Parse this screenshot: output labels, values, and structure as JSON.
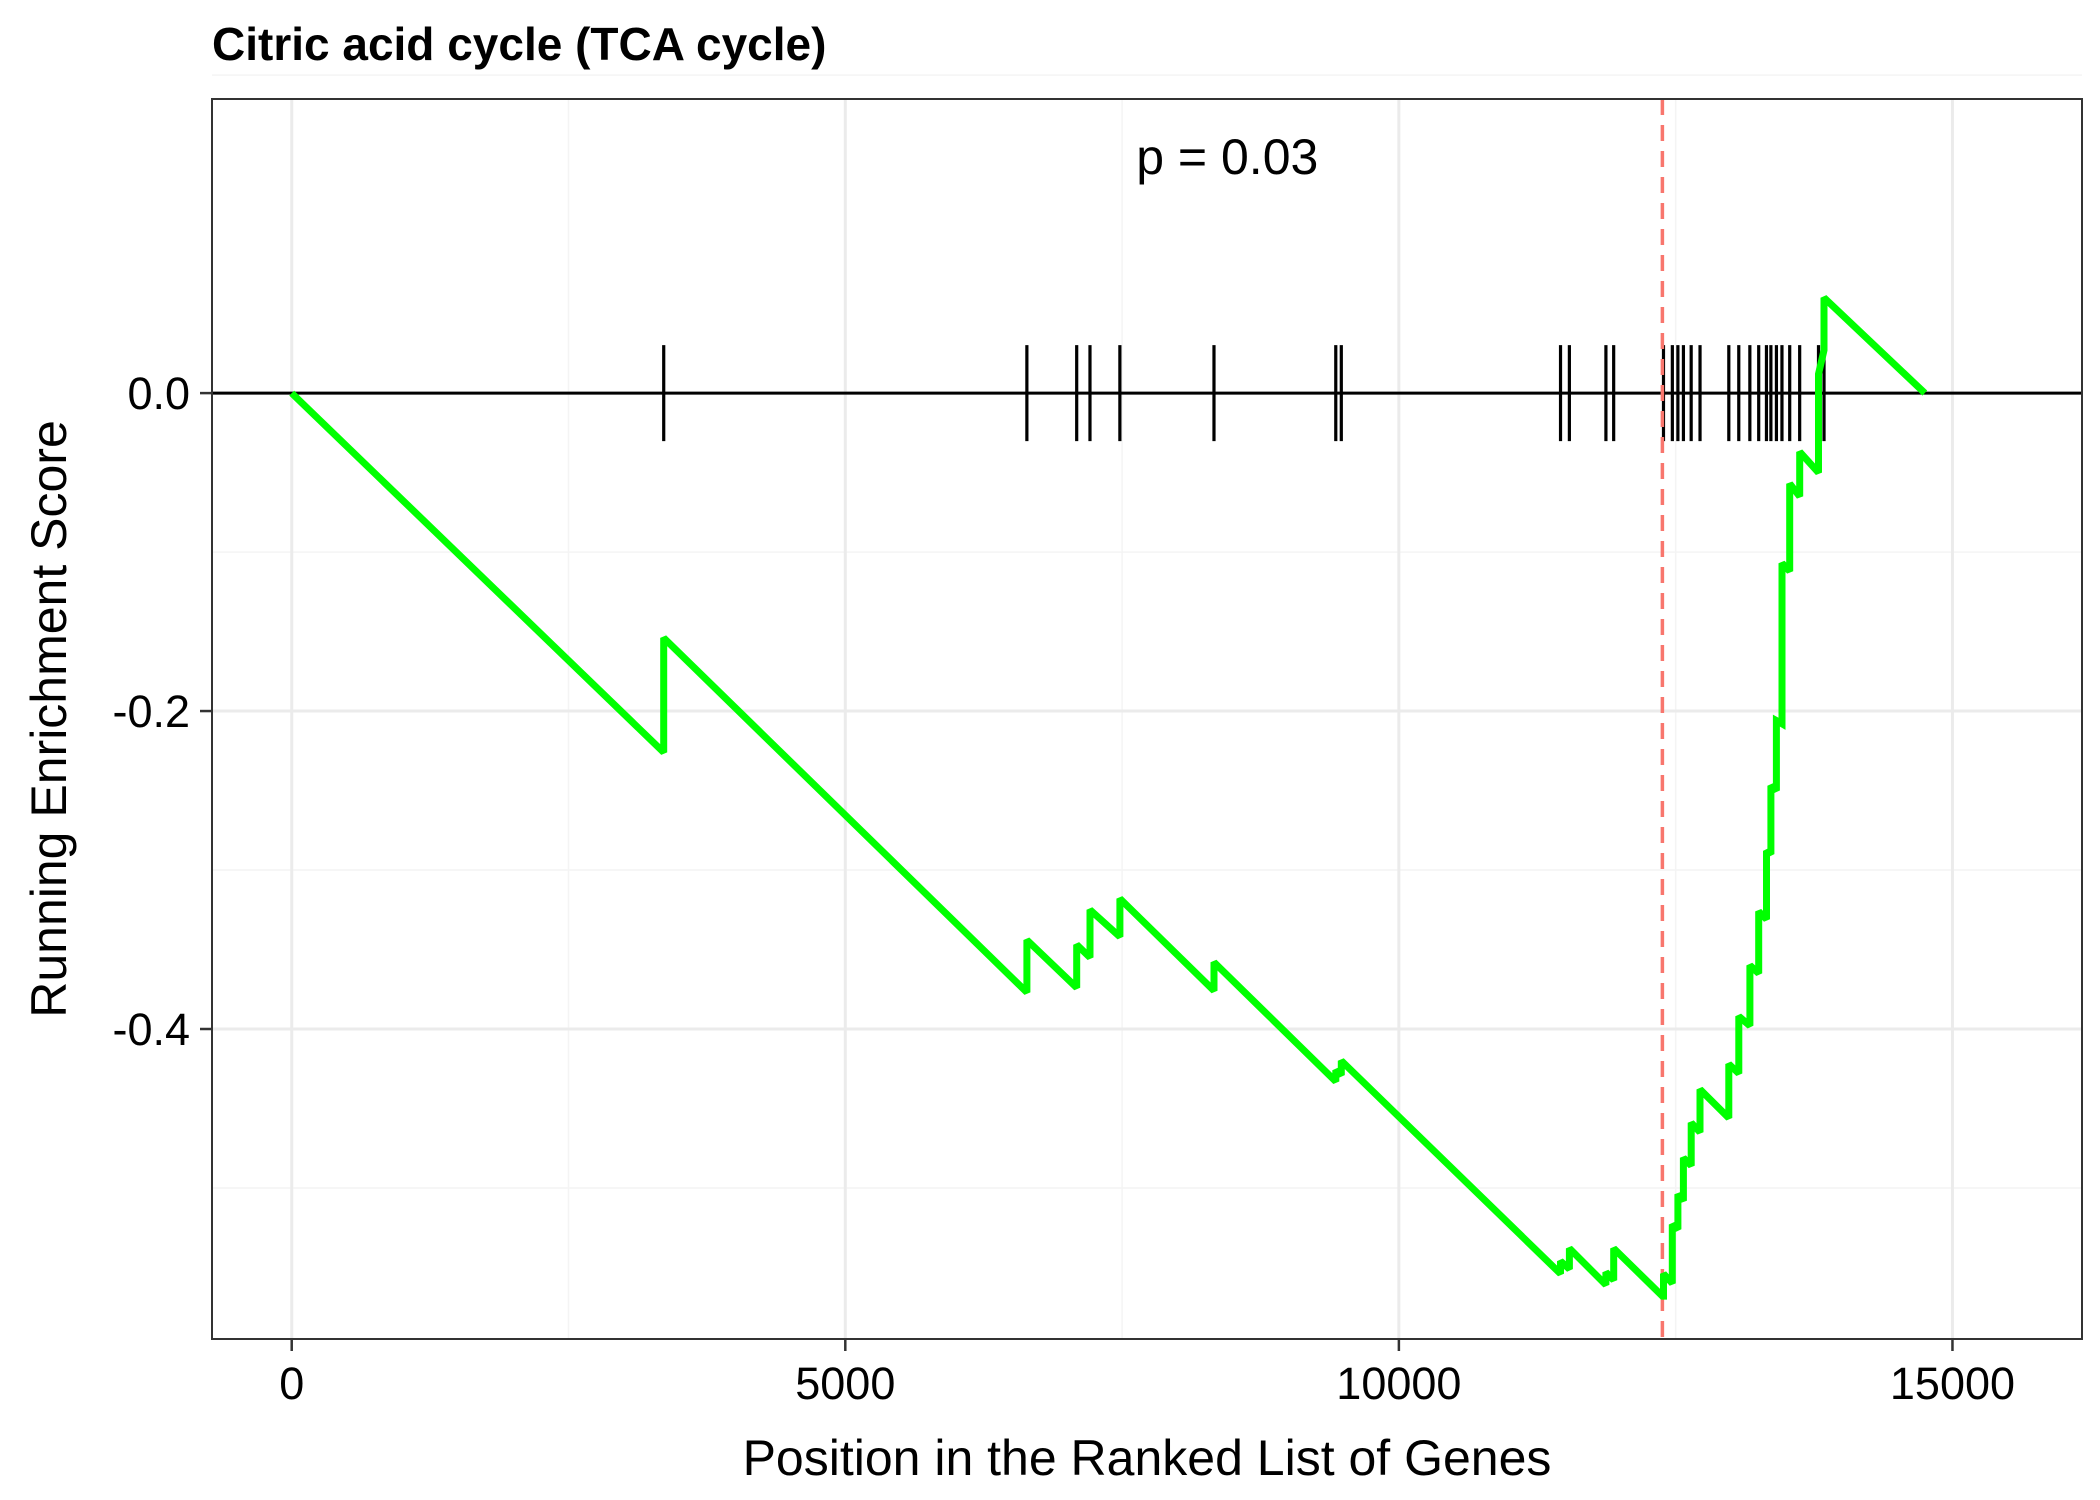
{
  "chart_data": {
    "type": "line",
    "title": "Citric acid cycle (TCA cycle)",
    "xlabel": "Position in the Ranked List of Genes",
    "ylabel": "Running Enrichment Score",
    "xlim": [
      -720,
      16170
    ],
    "ylim": [
      -0.595,
      0.185
    ],
    "x_ticks": [
      0,
      5000,
      10000,
      15000
    ],
    "x_tick_labels": [
      "0",
      "5000",
      "10000",
      "15000"
    ],
    "y_ticks": [
      0.0,
      -0.2,
      -0.4
    ],
    "y_tick_labels": [
      "0.0",
      "-0.2",
      "-0.4"
    ],
    "grid": true,
    "annotation": "p = 0.03",
    "colors": {
      "curve": "#00ff00",
      "max_deviation_line": "#f8766d",
      "hits": "#000000",
      "zero_line": "#000000",
      "grid_major": "#ebebeb",
      "grid_minor": "#f4f4f4",
      "panel_border": "#333333"
    },
    "max_deviation_position": 12380,
    "hit_positions": [
      3360,
      6640,
      7090,
      7210,
      7480,
      8330,
      9430,
      9480,
      11460,
      11540,
      11870,
      11940,
      12390,
      12470,
      12520,
      12570,
      12640,
      12720,
      12980,
      13070,
      13170,
      13250,
      13320,
      13360,
      13410,
      13460,
      13530,
      13620,
      13790,
      13840
    ],
    "series": [
      {
        "x": [
          0,
          3360,
          3360,
          6640,
          6640,
          7090,
          7090,
          7210,
          7210,
          7480,
          7480,
          8330,
          8330,
          9430,
          9430,
          9480,
          9480,
          11460,
          11460,
          11540,
          11540,
          11870,
          11870,
          11940,
          11940,
          12380,
          12390,
          12390,
          12470,
          12470,
          12520,
          12520,
          12570,
          12570,
          12640,
          12640,
          12720,
          12720,
          12980,
          12980,
          13070,
          13070,
          13170,
          13170,
          13250,
          13250,
          13320,
          13320,
          13360,
          13360,
          13410,
          13410,
          13460,
          13460,
          13530,
          13530,
          13620,
          13620,
          13790,
          13790,
          13840,
          13840,
          14750
        ],
        "y": [
          0.0,
          -0.226,
          -0.154,
          -0.377,
          -0.344,
          -0.374,
          -0.347,
          -0.355,
          -0.325,
          -0.342,
          -0.318,
          -0.376,
          -0.358,
          -0.433,
          -0.426,
          -0.429,
          -0.42,
          -0.554,
          -0.546,
          -0.551,
          -0.538,
          -0.561,
          -0.553,
          -0.558,
          -0.538,
          -0.568,
          -0.568,
          -0.554,
          -0.56,
          -0.523,
          -0.526,
          -0.504,
          -0.508,
          -0.481,
          -0.486,
          -0.459,
          -0.465,
          -0.438,
          -0.456,
          -0.422,
          -0.428,
          -0.392,
          -0.398,
          -0.36,
          -0.365,
          -0.326,
          -0.331,
          -0.288,
          -0.29,
          -0.247,
          -0.25,
          -0.206,
          -0.208,
          -0.107,
          -0.112,
          -0.057,
          -0.065,
          -0.037,
          -0.05,
          0.012,
          0.027,
          0.06,
          0.0
        ]
      }
    ]
  }
}
